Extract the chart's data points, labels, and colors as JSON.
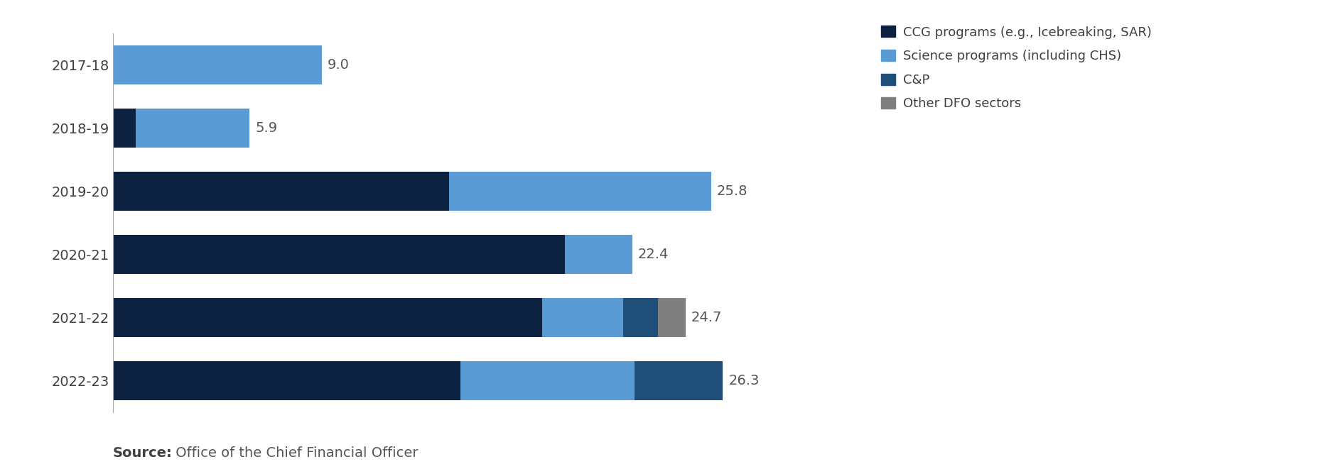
{
  "years": [
    "2017-18",
    "2018-19",
    "2019-20",
    "2020-21",
    "2021-22",
    "2022-23"
  ],
  "totals": [
    9.0,
    5.9,
    25.8,
    22.4,
    24.7,
    26.3
  ],
  "ccg": [
    0.0,
    1.0,
    14.5,
    19.5,
    18.5,
    15.0
  ],
  "science": [
    9.0,
    4.9,
    11.3,
    2.9,
    3.5,
    7.5
  ],
  "cp": [
    0.0,
    0.0,
    0.0,
    0.0,
    1.5,
    3.8
  ],
  "other": [
    0.0,
    0.0,
    0.0,
    0.0,
    1.2,
    0.0
  ],
  "color_ccg": "#0d2240",
  "color_science": "#5b9bd5",
  "color_cp": "#1f4e79",
  "color_other": "#7f7f7f",
  "legend_labels": [
    "CCG programs (e.g., Icebreaking, SAR)",
    "Science programs (including CHS)",
    "C&P",
    "Other DFO sectors"
  ],
  "source_bold": "Source:",
  "source_normal": " Office of the Chief Financial Officer",
  "label_fontsize": 14,
  "tick_fontsize": 14,
  "legend_fontsize": 13,
  "source_fontsize": 14,
  "bar_height": 0.62,
  "xlim_max": 31.5
}
